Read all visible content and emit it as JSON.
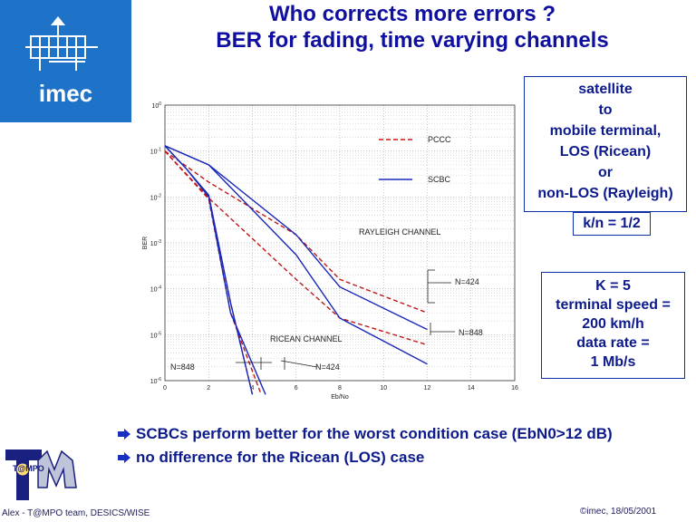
{
  "logo": {
    "text": "imec"
  },
  "title": {
    "line1": "Who corrects more errors ?",
    "line2": "BER for fading, time varying channels"
  },
  "side_boxes": {
    "scenario_lines": [
      "satellite",
      "to",
      "mobile terminal,",
      "LOS (Ricean)",
      "or",
      "non-LOS (Rayleigh)"
    ],
    "rate": "k/n = 1/2",
    "params_lines": [
      "K = 5",
      "terminal speed =",
      "200 km/h",
      "data rate =",
      "1 Mb/s"
    ]
  },
  "bullets": [
    "SCBCs perform better for the worst condition case (EbN0>12 dB)",
    "no difference for the Ricean (LOS) case"
  ],
  "footer": {
    "left": "Alex - T@MPO team, DESICS/WISE",
    "right": "©imec, 18/05/2001",
    "logo_text": "T@MPO"
  },
  "colors": {
    "title": "#1010a0",
    "pccc": "#c01818",
    "scbc": "#1828b8",
    "logo_bg": "#1e73c8"
  },
  "chart_data": {
    "type": "line",
    "xlabel": "Eb/No",
    "ylabel": "BER",
    "xlim": [
      0,
      16
    ],
    "ylim_log10": [
      -6,
      0
    ],
    "y_scale": "log",
    "x_ticks": [
      "0",
      "2",
      "4",
      "6",
      "8",
      "10",
      "12",
      "14",
      "16"
    ],
    "y_ticks": [
      "10^0",
      "10^-1",
      "10^-2",
      "10^-3",
      "10^-4",
      "10^-5",
      "10^-6"
    ],
    "grid": true,
    "legend": {
      "placement": "top-right",
      "entries": [
        "PCCC",
        "SCBC"
      ]
    },
    "annotations": [
      "RAYLEIGH CHANNEL",
      "RICEAN CHANNEL",
      "N=424",
      "N=848",
      "N=848",
      "N=424"
    ],
    "series": [
      {
        "name": "PCCC",
        "style": "dashed",
        "x": [
          0,
          2,
          6,
          8,
          12
        ],
        "y": [
          0.1,
          0.021,
          0.0015,
          0.00016,
          3e-05
        ]
      },
      {
        "name": "PCCC",
        "style": "dashed",
        "x": [
          0,
          2,
          6,
          8,
          12
        ],
        "y": [
          0.1,
          0.0095,
          0.00016,
          2.3e-05,
          6e-06
        ]
      },
      {
        "name": "SCBC",
        "style": "solid",
        "x": [
          0,
          2,
          6,
          8,
          12
        ],
        "y": [
          0.13,
          0.05,
          0.0015,
          0.00011,
          1.3e-05
        ]
      },
      {
        "name": "SCBC",
        "style": "solid",
        "x": [
          0,
          2,
          6,
          8,
          12
        ],
        "y": [
          0.13,
          0.05,
          0.00055,
          2.3e-05,
          2.3e-06
        ]
      },
      {
        "name": "PCCC",
        "style": "dashed",
        "x": [
          0,
          1,
          2,
          3,
          4
        ],
        "y": [
          0.1,
          0.03,
          0.01,
          5e-05,
          5e-07
        ]
      },
      {
        "name": "PCCC",
        "style": "dashed",
        "x": [
          0,
          1,
          2,
          3,
          4.4
        ],
        "y": [
          0.1,
          0.03,
          0.009,
          3e-05,
          5e-07
        ]
      },
      {
        "name": "SCBC",
        "style": "solid",
        "x": [
          0,
          1,
          2,
          3,
          4
        ],
        "y": [
          0.13,
          0.04,
          0.011,
          5e-05,
          5e-07
        ]
      },
      {
        "name": "SCBC",
        "style": "solid",
        "x": [
          0,
          1,
          2,
          3,
          4.6
        ],
        "y": [
          0.13,
          0.04,
          0.01,
          3e-05,
          5e-07
        ]
      }
    ]
  }
}
